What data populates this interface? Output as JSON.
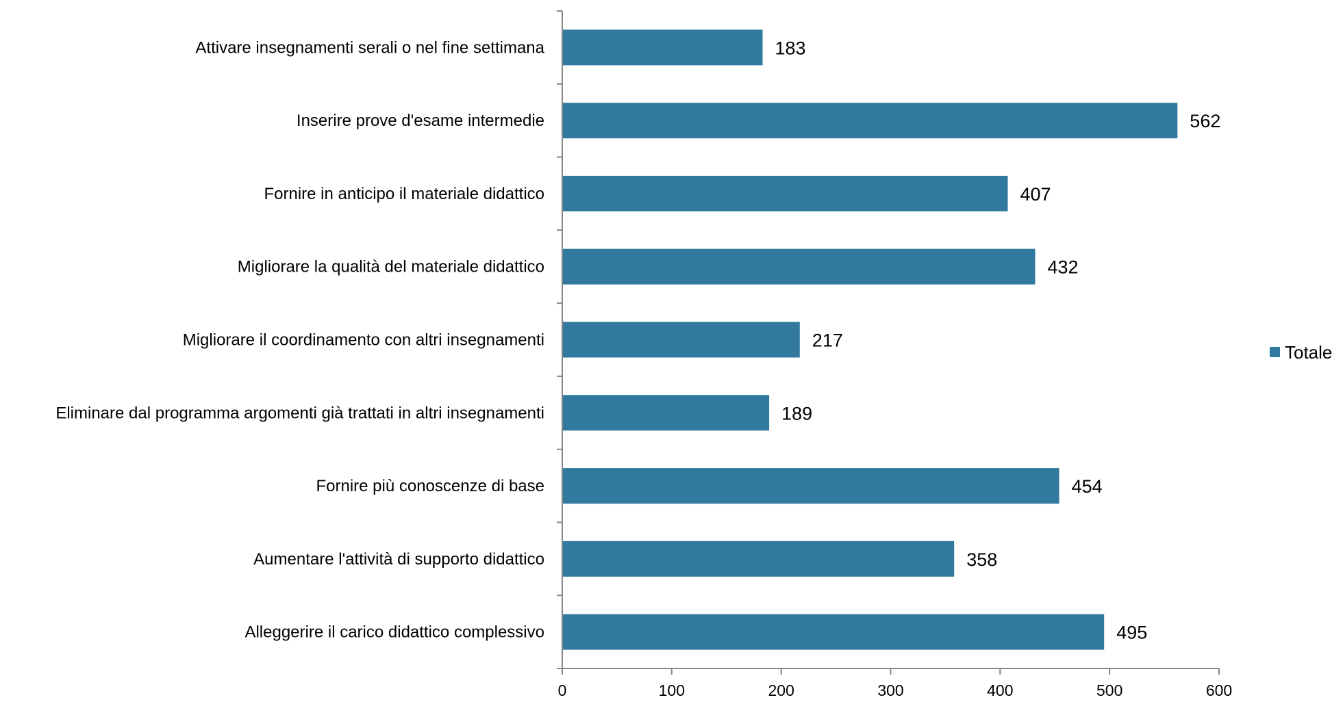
{
  "chart_data": {
    "type": "bar",
    "orientation": "horizontal",
    "categories": [
      "Attivare insegnamenti serali o nel fine settimana",
      "Inserire prove d'esame intermedie",
      "Fornire in anticipo il materiale didattico",
      "Migliorare la qualità del materiale didattico",
      "Migliorare il coordinamento con altri insegnamenti",
      "Eliminare dal programma argomenti già trattati in altri insegnamenti",
      "Fornire più conoscenze di base",
      "Aumentare l'attività di supporto didattico",
      "Alleggerire il carico didattico complessivo"
    ],
    "series": [
      {
        "name": "Totale",
        "values": [
          183,
          562,
          407,
          432,
          217,
          189,
          454,
          358,
          495
        ],
        "color": "#31799e"
      }
    ],
    "xlim": [
      0,
      600
    ],
    "x_ticks": [
      0,
      100,
      200,
      300,
      400,
      500,
      600
    ],
    "grid": false,
    "data_labels": true,
    "legend": {
      "position": "right",
      "entries": [
        "Totale"
      ]
    }
  }
}
